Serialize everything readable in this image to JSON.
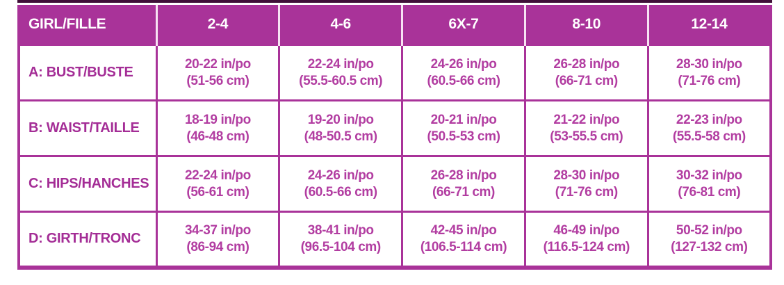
{
  "chart_data": {
    "type": "table",
    "header": {
      "label": "GIRL/FILLE",
      "sizes": [
        "2-4",
        "4-6",
        "6X-7",
        "8-10",
        "12-14"
      ]
    },
    "rows": [
      {
        "label": "A: BUST/BUSTE",
        "cells": [
          {
            "in": "20-22 in/po",
            "cm": "(51-56 cm)"
          },
          {
            "in": "22-24 in/po",
            "cm": "(55.5-60.5 cm)"
          },
          {
            "in": "24-26 in/po",
            "cm": "(60.5-66 cm)"
          },
          {
            "in": "26-28 in/po",
            "cm": "(66-71 cm)"
          },
          {
            "in": "28-30 in/po",
            "cm": "(71-76 cm)"
          }
        ]
      },
      {
        "label": "B: WAIST/TAILLE",
        "cells": [
          {
            "in": "18-19 in/po",
            "cm": "(46-48 cm)"
          },
          {
            "in": "19-20 in/po",
            "cm": "(48-50.5 cm)"
          },
          {
            "in": "20-21 in/po",
            "cm": "(50.5-53 cm)"
          },
          {
            "in": "21-22 in/po",
            "cm": "(53-55.5 cm)"
          },
          {
            "in": "22-23 in/po",
            "cm": "(55.5-58 cm)"
          }
        ]
      },
      {
        "label": "C: HIPS/HANCHES",
        "cells": [
          {
            "in": "22-24 in/po",
            "cm": "(56-61 cm)"
          },
          {
            "in": "24-26 in/po",
            "cm": "(60.5-66 cm)"
          },
          {
            "in": "26-28 in/po",
            "cm": "(66-71 cm)"
          },
          {
            "in": "28-30 in/po",
            "cm": "(71-76 cm)"
          },
          {
            "in": "30-32 in/po",
            "cm": "(76-81 cm)"
          }
        ]
      },
      {
        "label": "D: GIRTH/TRONC",
        "cells": [
          {
            "in": "34-37 in/po",
            "cm": "(86-94 cm)"
          },
          {
            "in": "38-41 in/po",
            "cm": "(96.5-104 cm)"
          },
          {
            "in": "42-45 in/po",
            "cm": "(106.5-114 cm)"
          },
          {
            "in": "46-49 in/po",
            "cm": "(116.5-124 cm)"
          },
          {
            "in": "50-52 in/po",
            "cm": "(127-132 cm)"
          }
        ]
      }
    ],
    "layout": {
      "units_note": "values shown as inches (in/po) over centimetres (cm)",
      "grid": "on"
    }
  },
  "colors": {
    "magenta": "#a93399",
    "header_text": "#ffffff",
    "row_label_text": "#a42d96",
    "cell_text": "#b23da1",
    "top_accent": "#401038",
    "background": "#ffffff"
  }
}
